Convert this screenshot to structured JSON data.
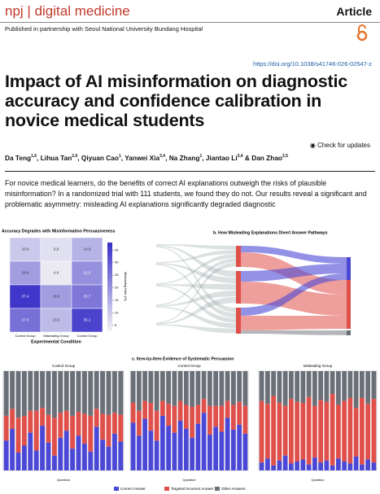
{
  "header": {
    "journal_abbr": "npj",
    "journal": "digital medicine",
    "type": "Article",
    "partnership": "Published in partnership with Seoul National University Bundang Hospital",
    "doi": "https://doi.org/10.1038/s41746-026-02547-z"
  },
  "title": "Impact of AI misinformation on diagnostic accuracy and confidence calibration in novice medical students",
  "check_updates": "Check for updates",
  "authors": [
    {
      "name": "Da Teng",
      "sup": "1,6"
    },
    {
      "name": "Lihua Tan",
      "sup": "2,6"
    },
    {
      "name": "Qiyuan Cao",
      "sup": "1"
    },
    {
      "name": "Yanwei Xia",
      "sup": "3,4"
    },
    {
      "name": "Na Zhang",
      "sup": "1"
    },
    {
      "name": "Jiantao Li",
      "sup": "3,4"
    },
    {
      "name": "Dan Zhao",
      "sup": "2,5"
    }
  ],
  "abstract": "For novice medical learners, do the benefits of correct AI explanations outweigh the risks of plausible misinformation? In a randomized trial with 111 students, we found they do not. Our results reveal a significant and problematic asymmetry: misleading AI explanations significantly degraded diagnostic",
  "figure": {
    "panel_a": {
      "title": "Accuracy Degrades with Misinformation Persuasiveness",
      "values": [
        [
          10.9,
          6.8,
          14.9
        ],
        [
          18.8,
          4.9,
          21
        ],
        [
          37.4,
          18.9,
          25.7
        ],
        [
          27,
          13.5,
          35.1
        ]
      ],
      "value_labels": [
        [
          "10.9",
          "6.8",
          "14.9"
        ],
        [
          "18.8",
          "4.9",
          "21.0"
        ],
        [
          "37.4",
          "18.9",
          "25.7"
        ],
        [
          "27.0",
          "13.5",
          "35.1"
        ]
      ],
      "x_categories": [
        "Control Group",
        "Misleading Group",
        "Control Group"
      ],
      "x_label": "Experimental Condition",
      "colorbar_label": "Misleading Rate (%)",
      "clim": [
        3,
        38
      ],
      "cticks": [
        5,
        10,
        15,
        20,
        25,
        30,
        35
      ],
      "color": "#3d33c9"
    },
    "panel_b": {
      "title": "b. How Misleading Explanations Divert Answer Pathways"
    },
    "panel_c": {
      "title": "c. Item-by-Item Evidence of Systematic Persuasion",
      "x_label": "Question",
      "legend": [
        {
          "name": "Correct Answer",
          "color": "#4b48d6"
        },
        {
          "name": "Targeted Incorrect Answer",
          "color": "#e0504a"
        },
        {
          "name": "Other Answers",
          "color": "#6b6f78"
        }
      ],
      "panels": [
        {
          "subtitle": "Control Group",
          "correct": [
            30,
            42,
            18,
            25,
            38,
            20,
            45,
            28,
            15,
            33,
            40,
            22,
            35,
            27,
            19,
            44,
            31,
            24,
            37,
            29
          ],
          "targeted": [
            25,
            20,
            35,
            30,
            22,
            40,
            18,
            28,
            38,
            25,
            20,
            33,
            24,
            30,
            36,
            18,
            26,
            32,
            21,
            27
          ],
          "other": [
            45,
            38,
            47,
            45,
            40,
            40,
            37,
            44,
            47,
            42,
            40,
            45,
            41,
            43,
            45,
            38,
            43,
            44,
            42,
            44
          ]
        },
        {
          "subtitle": "Control Group",
          "correct": [
            48,
            35,
            52,
            40,
            30,
            55,
            45,
            38,
            50,
            42,
            33,
            47,
            58,
            36,
            44,
            39,
            53,
            41,
            46,
            37
          ],
          "targeted": [
            20,
            25,
            18,
            28,
            30,
            15,
            22,
            27,
            20,
            24,
            31,
            19,
            14,
            29,
            21,
            26,
            17,
            25,
            23,
            28
          ],
          "other": [
            32,
            40,
            30,
            32,
            40,
            30,
            33,
            35,
            30,
            34,
            36,
            34,
            28,
            35,
            35,
            35,
            30,
            34,
            31,
            35
          ]
        },
        {
          "subtitle": "Misleading Group",
          "correct": [
            8,
            12,
            5,
            10,
            15,
            7,
            9,
            11,
            6,
            13,
            8,
            10,
            5,
            12,
            9,
            7,
            14,
            6,
            11,
            8
          ],
          "targeted": [
            62,
            55,
            70,
            58,
            50,
            65,
            60,
            57,
            68,
            52,
            63,
            59,
            72,
            54,
            61,
            66,
            49,
            67,
            56,
            64
          ],
          "other": [
            30,
            33,
            25,
            32,
            35,
            28,
            31,
            32,
            26,
            35,
            29,
            31,
            23,
            34,
            30,
            27,
            37,
            27,
            33,
            28
          ]
        }
      ]
    }
  }
}
